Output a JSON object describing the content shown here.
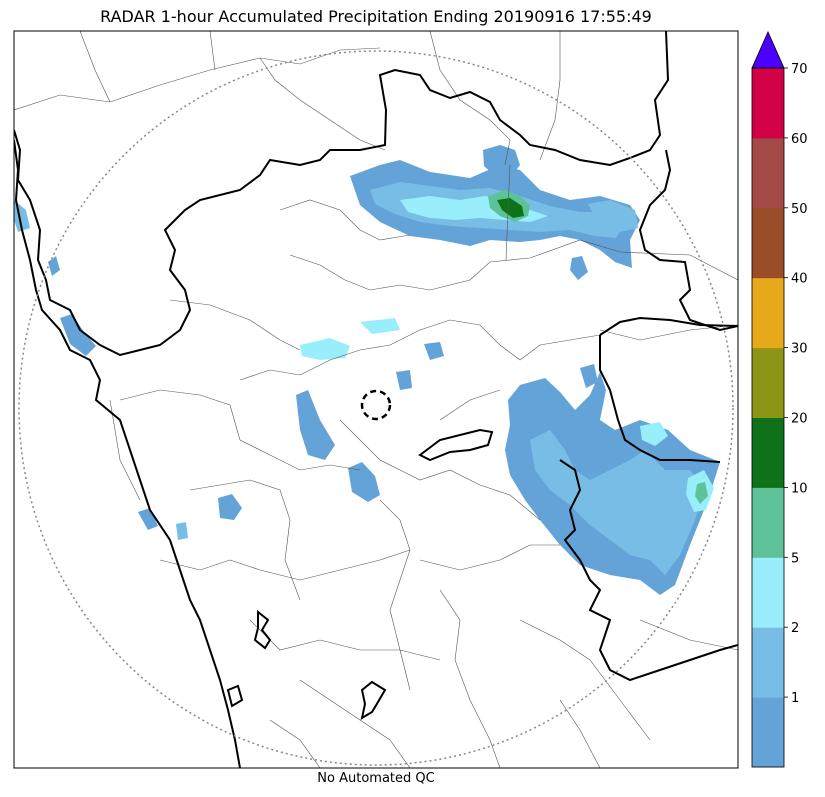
{
  "title": "RADAR 1-hour Accumulated Precipitation Ending 20190916 17:55:49",
  "footer": "No Automated QC",
  "colorbar": {
    "ticks": [
      "1",
      "2",
      "5",
      "10",
      "20",
      "30",
      "40",
      "50",
      "60",
      "70"
    ],
    "colors": [
      "#64a3d7",
      "#78bde6",
      "#98eefa",
      "#5ec299",
      "#0e7219",
      "#8d9516",
      "#e7a91a",
      "#9a4d27",
      "#a44a46",
      "#d20046"
    ],
    "extend_color": "#4b00ff"
  },
  "colors": {
    "rain_light": "#64a3d7",
    "rain_mid": "#78bde6",
    "rain_cyan": "#98eefa",
    "rain_teal": "#5ec299",
    "rain_green": "#0e7219"
  }
}
